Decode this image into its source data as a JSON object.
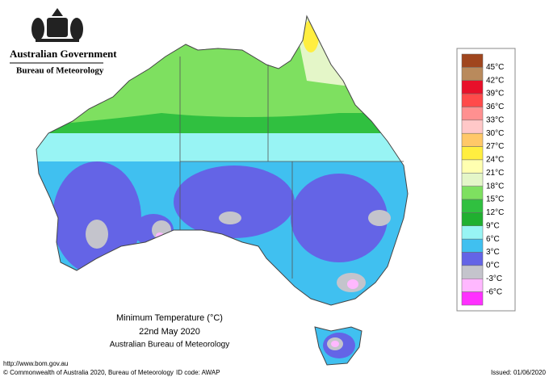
{
  "header": {
    "government": "Australian Government",
    "agency": "Bureau of Meteorology"
  },
  "map_title": {
    "line1": "Minimum Temperature (°C)",
    "line2": "22nd May 2020",
    "line3": "Australian Bureau of Meteorology"
  },
  "legend": {
    "colors": [
      "#a0461e",
      "#b98a5c",
      "#e8102a",
      "#ff4a4a",
      "#ff9090",
      "#ffc8c8",
      "#ffc868",
      "#ffee40",
      "#ffffb0",
      "#e4f6c8",
      "#7ee060",
      "#30c040",
      "#20b030",
      "#98f4f4",
      "#40c0f0",
      "#6464e6",
      "#c4c4cc",
      "#ffb8ff",
      "#ff30ff"
    ],
    "labels": [
      "45°C",
      "42°C",
      "39°C",
      "36°C",
      "33°C",
      "30°C",
      "27°C",
      "24°C",
      "21°C",
      "18°C",
      "15°C",
      "12°C",
      "9°C",
      "6°C",
      "3°C",
      "0°C",
      "-3°C",
      "-6°C"
    ]
  },
  "footer": {
    "url": "http://www.bom.gov.au",
    "copyright": "© Commonwealth of Australia 2020, Bureau of Meteorology",
    "id_code": "ID code: AWAP",
    "issued": "Issued: 01/06/2020"
  }
}
